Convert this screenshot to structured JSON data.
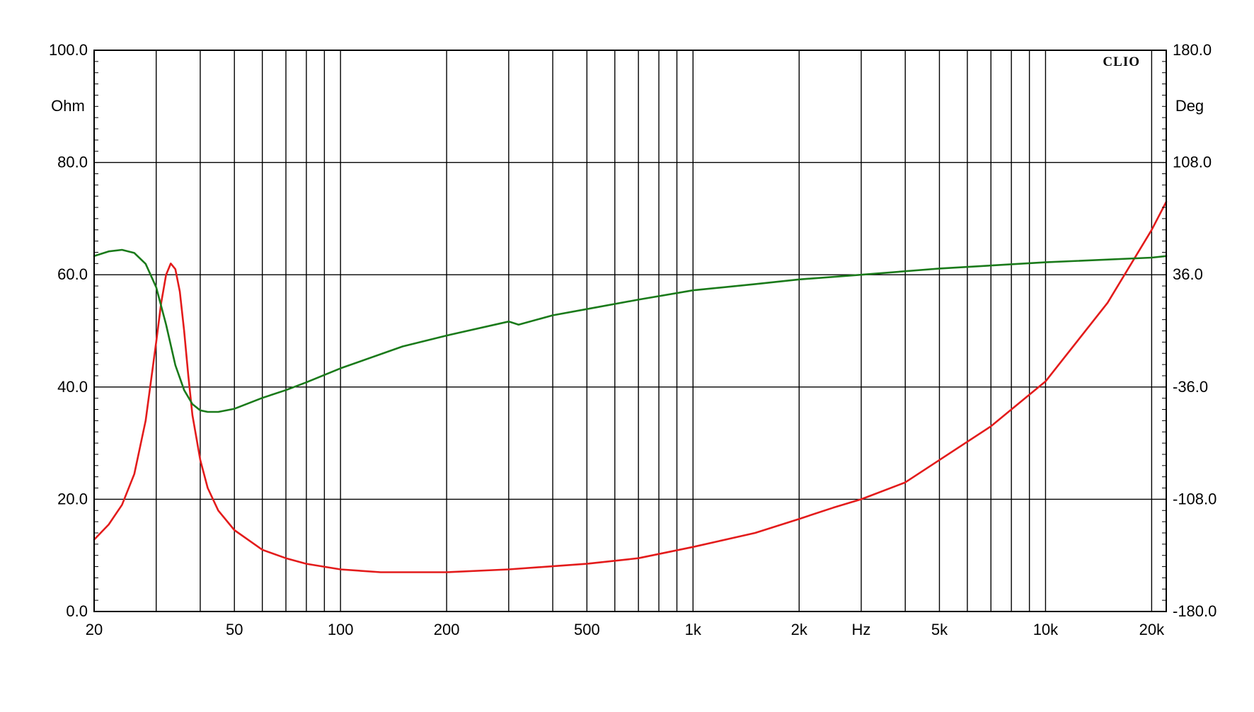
{
  "chart_data": {
    "type": "line",
    "title": "",
    "brand": "CLIO",
    "x_scale": "log",
    "xlim": [
      20,
      22000
    ],
    "xlabel": "Hz",
    "x_tick_labels": [
      {
        "value": 20,
        "label": "20"
      },
      {
        "value": 50,
        "label": "50"
      },
      {
        "value": 100,
        "label": "100"
      },
      {
        "value": 200,
        "label": "200"
      },
      {
        "value": 500,
        "label": "500"
      },
      {
        "value": 1000,
        "label": "1k"
      },
      {
        "value": 2000,
        "label": "2k"
      },
      {
        "value": 3000,
        "label": "Hz"
      },
      {
        "value": 5000,
        "label": "5k"
      },
      {
        "value": 10000,
        "label": "10k"
      },
      {
        "value": 20000,
        "label": "20k"
      }
    ],
    "x_gridlines": [
      30,
      40,
      50,
      60,
      70,
      80,
      90,
      100,
      200,
      300,
      400,
      500,
      600,
      700,
      800,
      900,
      1000,
      2000,
      3000,
      4000,
      5000,
      6000,
      7000,
      8000,
      9000,
      10000,
      20000
    ],
    "y_left": {
      "label": "Ohm",
      "range": [
        0,
        100
      ],
      "ticks": [
        {
          "value": 0,
          "label": "0.0"
        },
        {
          "value": 20,
          "label": "20.0"
        },
        {
          "value": 40,
          "label": "40.0"
        },
        {
          "value": 60,
          "label": "60.0"
        },
        {
          "value": 80,
          "label": "80.0"
        },
        {
          "value": 100,
          "label": "100.0"
        }
      ]
    },
    "y_right": {
      "label": "Deg",
      "range": [
        -180,
        180
      ],
      "ticks": [
        {
          "value": -180,
          "label": "-180.0"
        },
        {
          "value": -108,
          "label": "-108.0"
        },
        {
          "value": -36,
          "label": "-36.0"
        },
        {
          "value": 36,
          "label": "36.0"
        },
        {
          "value": 108,
          "label": "108.0"
        },
        {
          "value": 180,
          "label": "180.0"
        }
      ]
    },
    "grid": true,
    "series": [
      {
        "axis": "left",
        "color": "#e31b1b",
        "x": [
          20,
          22,
          24,
          26,
          28,
          30,
          31,
          32,
          33,
          34,
          35,
          36,
          37,
          38,
          40,
          42,
          45,
          50,
          60,
          70,
          80,
          100,
          130,
          150,
          200,
          300,
          500,
          700,
          1000,
          1500,
          2000,
          2500,
          3000,
          4000,
          5000,
          7000,
          10000,
          15000,
          20000,
          22000
        ],
        "y": [
          12.8,
          15.5,
          19.0,
          24.5,
          34.0,
          48.0,
          55.0,
          60.0,
          62.0,
          61.0,
          57.0,
          50.0,
          42.0,
          35.0,
          27.0,
          22.0,
          18.0,
          14.5,
          11.0,
          9.5,
          8.5,
          7.5,
          7.0,
          7.0,
          7.0,
          7.5,
          8.5,
          9.5,
          11.5,
          14.0,
          16.5,
          18.5,
          20.0,
          23.0,
          27.0,
          33.0,
          41.0,
          55.0,
          68.0,
          73.0
        ]
      },
      {
        "axis": "right",
        "color": "#1a7a1a",
        "x": [
          20,
          22,
          24,
          26,
          28,
          30,
          32,
          34,
          36,
          38,
          40,
          42,
          45,
          50,
          60,
          70,
          80,
          100,
          150,
          200,
          300,
          310,
          320,
          400,
          500,
          700,
          1000,
          1500,
          2000,
          3000,
          5000,
          10000,
          20000,
          22000
        ],
        "y": [
          48,
          51,
          52,
          50,
          43,
          28,
          4,
          -22,
          -38,
          -47,
          -51,
          -52,
          -52,
          -50,
          -43,
          -38,
          -33,
          -24,
          -10,
          -3,
          6,
          5,
          4,
          10,
          14,
          20,
          26,
          30,
          33,
          36,
          40,
          44,
          47,
          48
        ]
      }
    ]
  }
}
